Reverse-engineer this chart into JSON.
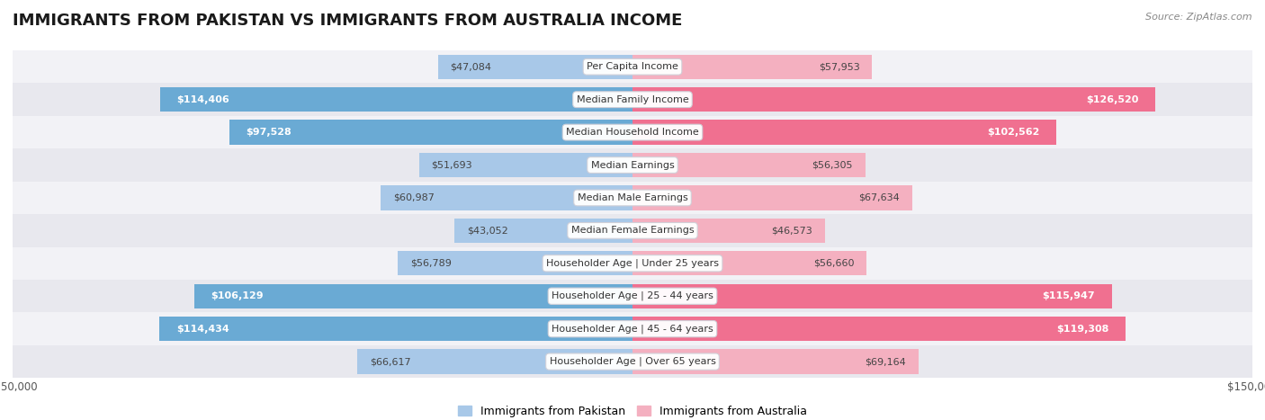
{
  "title": "IMMIGRANTS FROM PAKISTAN VS IMMIGRANTS FROM AUSTRALIA INCOME",
  "source": "Source: ZipAtlas.com",
  "categories": [
    "Per Capita Income",
    "Median Family Income",
    "Median Household Income",
    "Median Earnings",
    "Median Male Earnings",
    "Median Female Earnings",
    "Householder Age | Under 25 years",
    "Householder Age | 25 - 44 years",
    "Householder Age | 45 - 64 years",
    "Householder Age | Over 65 years"
  ],
  "pakistan_values": [
    47084,
    114406,
    97528,
    51693,
    60987,
    43052,
    56789,
    106129,
    114434,
    66617
  ],
  "australia_values": [
    57953,
    126520,
    102562,
    56305,
    67634,
    46573,
    56660,
    115947,
    119308,
    69164
  ],
  "pakistan_color_light": "#a8c8e8",
  "pakistan_color_strong": "#6aaad4",
  "australia_color_light": "#f4b0c0",
  "australia_color_strong": "#f07090",
  "pakistan_label": "Immigrants from Pakistan",
  "australia_label": "Immigrants from Australia",
  "max_value": 150000,
  "row_colors": [
    "#f2f2f6",
    "#e8e8ee"
  ],
  "title_fontsize": 13,
  "label_fontsize": 8,
  "value_fontsize": 8,
  "source_fontsize": 8
}
